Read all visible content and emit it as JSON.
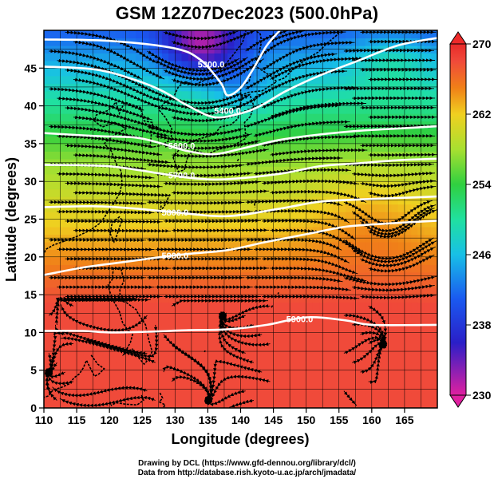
{
  "title": "GSM 12Z07Dec2023 (500.0hPa)",
  "credit": {
    "line1": "Drawing by DCL (https://www.gfd-dennou.org/library/dcl/)",
    "line2": "Data from http://database.rish.kyoto-u.ac.jp/arch/jmadata/"
  },
  "chart_data": {
    "type": "heatmap",
    "title": "GSM 12Z07Dec2023 (500.0hPa)",
    "xlabel": "Longitude (degrees)",
    "ylabel": "Latitude  (degrees)",
    "xlim": [
      110,
      170
    ],
    "ylim": [
      0,
      50
    ],
    "x_ticks": [
      "110",
      "115",
      "120",
      "125",
      "130",
      "135",
      "140",
      "145",
      "150",
      "155",
      "160",
      "165"
    ],
    "y_ticks": [
      "0",
      "5",
      "10",
      "15",
      "20",
      "25",
      "30",
      "35",
      "40",
      "45"
    ],
    "grid": true,
    "colorbar": {
      "position": "right",
      "range": [
        230,
        270
      ],
      "labels": [
        "270",
        "262",
        "254",
        "246",
        "238",
        "230"
      ],
      "stops": [
        {
          "value": 230,
          "color": "#e020a0"
        },
        {
          "value": 236,
          "color": "#2a1fc8"
        },
        {
          "value": 241,
          "color": "#1a5af0"
        },
        {
          "value": 246,
          "color": "#18c0e6"
        },
        {
          "value": 250,
          "color": "#20e0a0"
        },
        {
          "value": 254,
          "color": "#30d040"
        },
        {
          "value": 258,
          "color": "#a8e030"
        },
        {
          "value": 262,
          "color": "#f0d020"
        },
        {
          "value": 265,
          "color": "#f08018"
        },
        {
          "value": 268,
          "color": "#f04a3a"
        },
        {
          "value": 270,
          "color": "#e82a2a"
        }
      ]
    },
    "contours": [
      {
        "label": "5300.0",
        "points": [
          [
            110,
            48.8
          ],
          [
            120,
            48.6
          ],
          [
            130,
            47.6
          ],
          [
            134,
            46
          ],
          [
            137,
            43
          ],
          [
            138,
            41.4
          ],
          [
            140,
            42.4
          ],
          [
            142,
            45
          ],
          [
            144,
            48
          ],
          [
            146,
            50
          ]
        ],
        "label_at": [
          135.5,
          45.5
        ]
      },
      {
        "label": "5400.0",
        "points": [
          [
            110,
            45.2
          ],
          [
            118,
            44.8
          ],
          [
            124,
            43.4
          ],
          [
            128,
            42
          ],
          [
            132,
            40
          ],
          [
            136,
            38.5
          ],
          [
            140,
            39
          ],
          [
            143,
            40
          ],
          [
            147,
            42
          ],
          [
            152,
            44
          ],
          [
            158,
            46
          ],
          [
            164,
            48
          ],
          [
            170,
            49
          ]
        ],
        "label_at": [
          138,
          39.4
        ]
      },
      {
        "label": "5600.0",
        "points": [
          [
            110,
            36.4
          ],
          [
            118,
            36
          ],
          [
            124,
            35.8
          ],
          [
            128,
            35
          ],
          [
            132,
            34
          ],
          [
            136,
            33.6
          ],
          [
            140,
            34.3
          ],
          [
            146,
            35.5
          ],
          [
            152,
            36.2
          ],
          [
            158,
            36.7
          ],
          [
            164,
            37
          ],
          [
            170,
            37.3
          ]
        ],
        "label_at": [
          131,
          34.7
        ]
      },
      {
        "label": "5700.0",
        "points": [
          [
            110,
            32.2
          ],
          [
            120,
            32
          ],
          [
            128,
            31
          ],
          [
            133,
            30.4
          ],
          [
            138,
            30.3
          ],
          [
            146,
            31
          ],
          [
            152,
            32
          ],
          [
            158,
            32.4
          ],
          [
            164,
            32.8
          ],
          [
            170,
            33
          ]
        ],
        "label_at": [
          131,
          30.8
        ]
      },
      {
        "label": "5800.0",
        "points": [
          [
            110,
            26.6
          ],
          [
            118,
            26.7
          ],
          [
            124,
            26.4
          ],
          [
            130,
            25.9
          ],
          [
            138,
            25.4
          ],
          [
            146,
            26.4
          ],
          [
            152,
            27.3
          ],
          [
            158,
            27.6
          ],
          [
            164,
            27.8
          ],
          [
            170,
            28
          ]
        ],
        "label_at": [
          130,
          25.9
        ]
      },
      {
        "label": "5900.0",
        "points": [
          [
            110,
            17.6
          ],
          [
            116,
            18.6
          ],
          [
            122,
            19.3
          ],
          [
            128,
            20
          ],
          [
            132,
            20.4
          ],
          [
            138,
            20.9
          ],
          [
            144,
            22
          ],
          [
            150,
            23
          ],
          [
            156,
            24
          ],
          [
            162,
            24.4
          ],
          [
            170,
            24.8
          ]
        ],
        "label_at": [
          130,
          20.2
        ]
      },
      {
        "label": "5900.0",
        "points": [
          [
            110,
            10.2
          ],
          [
            116,
            10.2
          ],
          [
            120,
            10
          ],
          [
            126,
            10.1
          ],
          [
            132,
            10.3
          ],
          [
            138,
            10.4
          ],
          [
            144,
            11
          ],
          [
            150,
            12
          ],
          [
            156,
            11.6
          ],
          [
            160,
            11
          ],
          [
            170,
            11
          ]
        ],
        "label_at": [
          149,
          11.8
        ]
      }
    ]
  }
}
